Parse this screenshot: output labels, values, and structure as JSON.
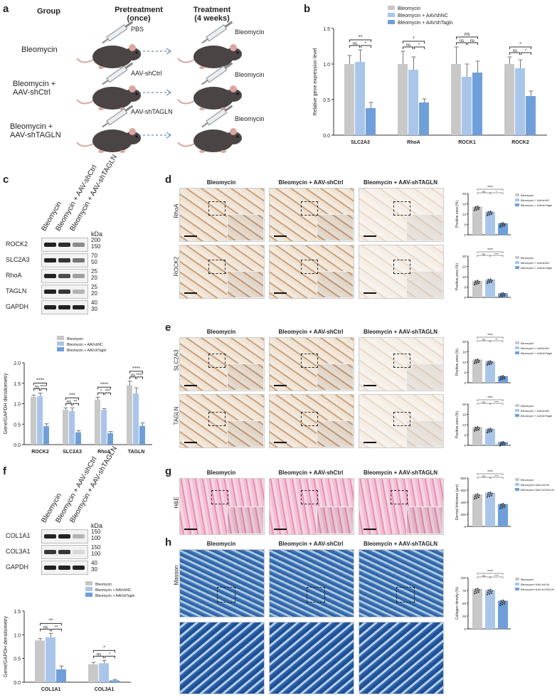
{
  "panel_labels": {
    "a": "a",
    "b": "b",
    "c": "c",
    "d": "d",
    "e": "e",
    "f": "f",
    "g": "g",
    "h": "h"
  },
  "panel_a": {
    "group_header": "Group",
    "pretreatment_header": "Pretreatment\n(once)",
    "treatment_header": "Treatment\n(4 weeks)",
    "rows": [
      {
        "group": "Bleomycin",
        "pre": "PBS",
        "treat": "Bleomycin"
      },
      {
        "group": "Bleomycin +\nAAV-shCtrl",
        "pre": "AAV-shCtrl",
        "treat": "Bleomycin"
      },
      {
        "group": "Bleomycin +\nAAV-shTAGLN",
        "pre": "AAV-shTAGLN",
        "treat": "Bleomycin"
      }
    ]
  },
  "groups3": [
    "Bleomycin",
    "Bleomycin + AAV-shCtrl",
    "Bleomycin + AAV-shTAGLN"
  ],
  "legend_b": [
    "Bleomycin",
    "Bleomycin + AAVshNC",
    "Bleomycin + AAVshTagln"
  ],
  "legend_c": [
    "Bleomycin",
    "Bleomycin + AAVshNC",
    "Bleomycin + AAVshTagln"
  ],
  "legend_g": [
    "Bleomycin",
    "Bleomycin+AAV-shCtrl",
    "Bleomycin+AAV-shTAGLN"
  ],
  "colors": {
    "bleo": "#c8c8c8",
    "ctrl": "#a9c6ea",
    "tagln": "#6f9fd8"
  },
  "western_c": {
    "kda": "kDa",
    "rows": [
      {
        "label": "ROCK2",
        "markers": [
          "200",
          "150"
        ]
      },
      {
        "label": "SLC2A3",
        "markers": [
          "70",
          "50"
        ]
      },
      {
        "label": "RhoA",
        "markers": [
          "25",
          "20"
        ]
      },
      {
        "label": "TAGLN",
        "markers": [
          "25",
          "20"
        ]
      },
      {
        "label": "GAPDH",
        "markers": [
          "40",
          "30"
        ]
      }
    ]
  },
  "western_f": {
    "kda": "kDa",
    "rows": [
      {
        "label": "COL1A1",
        "markers": [
          "150",
          "100"
        ]
      },
      {
        "label": "COL3A1",
        "markers": [
          "150",
          "100"
        ]
      },
      {
        "label": "GAPDH",
        "markers": [
          "40",
          "30"
        ]
      }
    ]
  },
  "histo": {
    "d_rows": [
      "RhoA",
      "ROCK2"
    ],
    "e_rows": [
      "SLC2A3",
      "TAGLN"
    ],
    "g_row": "H&E",
    "h_row": "Masson"
  },
  "chart_data": [
    {
      "id": "b",
      "type": "bar",
      "categories": [
        "SLC2A3",
        "RhoA",
        "ROCK1",
        "ROCK2"
      ],
      "ylabel": "Relative gene expression level",
      "ylim": [
        0,
        1.5
      ],
      "yticks": [
        "0.0",
        "0.5",
        "1.0",
        "1.5"
      ],
      "series": [
        {
          "name": "Bleomycin",
          "values": [
            1.0,
            1.0,
            1.0,
            1.0
          ],
          "errors": [
            0.12,
            0.18,
            0.24,
            0.1
          ]
        },
        {
          "name": "Bleomycin + AAVshNC",
          "values": [
            1.03,
            0.92,
            0.82,
            0.94
          ],
          "errors": [
            0.17,
            0.18,
            0.18,
            0.12
          ]
        },
        {
          "name": "Bleomycin + AAVshTagln",
          "values": [
            0.38,
            0.46,
            0.88,
            0.55
          ],
          "errors": [
            0.08,
            0.05,
            0.16,
            0.07
          ]
        }
      ],
      "sig": [
        [
          "**",
          "ns",
          "*"
        ],
        [
          "*",
          "ns",
          "*"
        ],
        [
          "ns",
          "ns",
          "ns"
        ],
        [
          "*",
          "ns",
          "*"
        ]
      ]
    },
    {
      "id": "c",
      "type": "bar",
      "categories": [
        "ROCK2",
        "SLC2A3",
        "RhoA",
        "TAGLN"
      ],
      "ylabel": "Gene/GAPDH densitometry",
      "ylim": [
        0,
        2.0
      ],
      "yticks": [
        "0.0",
        "0.5",
        "1.0",
        "1.5",
        "2.0"
      ],
      "series": [
        {
          "name": "Bleomycin",
          "values": [
            1.17,
            0.85,
            1.1,
            1.45
          ],
          "errors": [
            0.04,
            0.05,
            0.06,
            0.1
          ]
        },
        {
          "name": "Bleomycin + AAVshNC",
          "values": [
            1.18,
            0.82,
            0.85,
            1.25
          ],
          "errors": [
            0.08,
            0.08,
            0.03,
            0.14
          ]
        },
        {
          "name": "Bleomycin + AAVshTagln",
          "values": [
            0.45,
            0.3,
            0.28,
            0.46
          ],
          "errors": [
            0.06,
            0.04,
            0.04,
            0.07
          ]
        }
      ],
      "sig": [
        [
          "****",
          "ns",
          "****"
        ],
        [
          "***",
          "ns",
          "**"
        ],
        [
          "****",
          "*",
          "***"
        ],
        [
          "****",
          "ns",
          "****"
        ]
      ]
    },
    {
      "id": "f",
      "type": "bar",
      "categories": [
        "COL1A1",
        "COL3A1"
      ],
      "ylabel": "Gene/GAPDH densitometry",
      "ylim": [
        0,
        1.5
      ],
      "yticks": [
        "0.0",
        "0.5",
        "1.0",
        "1.5"
      ],
      "series": [
        {
          "name": "Bleomycin",
          "values": [
            0.88,
            0.38
          ],
          "errors": [
            0.04,
            0.04
          ]
        },
        {
          "name": "Bleomycin + AAVshNC",
          "values": [
            0.95,
            0.4
          ],
          "errors": [
            0.08,
            0.06
          ]
        },
        {
          "name": "Bleomycin + AAVshTagln",
          "values": [
            0.27,
            0.04
          ],
          "errors": [
            0.07,
            0.02
          ]
        }
      ],
      "sig": [
        [
          "**",
          "ns",
          "**"
        ],
        [
          "*",
          "ns",
          "*"
        ]
      ]
    },
    {
      "id": "d1",
      "type": "scatter",
      "ylabel": "Positive area (%)",
      "ylim": [
        0,
        25
      ],
      "values": [
        17,
        14,
        7
      ],
      "sig": [
        "****",
        "ns",
        "*"
      ]
    },
    {
      "id": "d2",
      "type": "scatter",
      "ylabel": "Positive area (%)",
      "ylim": [
        0,
        30
      ],
      "values": [
        12,
        13,
        3
      ],
      "sig": [
        "****",
        "ns",
        "****"
      ]
    },
    {
      "id": "e1",
      "type": "scatter",
      "ylabel": "Positive area (%)",
      "ylim": [
        0,
        25
      ],
      "values": [
        14,
        13,
        4
      ],
      "sig": [
        "****",
        "ns",
        "**"
      ]
    },
    {
      "id": "e2",
      "type": "scatter",
      "ylabel": "Positive area (%)",
      "ylim": [
        0,
        25
      ],
      "values": [
        11,
        10,
        2
      ],
      "sig": [
        "****",
        "ns",
        "****"
      ]
    },
    {
      "id": "g1",
      "type": "scatter",
      "ylabel": "Dermal thickness (μm)",
      "ylim": [
        0,
        800
      ],
      "values": [
        530,
        560,
        370
      ],
      "sig": [
        "****",
        "ns",
        "****"
      ]
    },
    {
      "id": "h1",
      "type": "scatter",
      "ylabel": "Collagen density (%)",
      "ylim": [
        0,
        100
      ],
      "values": [
        78,
        76,
        55
      ],
      "sig": [
        "****",
        "ns",
        "****"
      ]
    }
  ]
}
